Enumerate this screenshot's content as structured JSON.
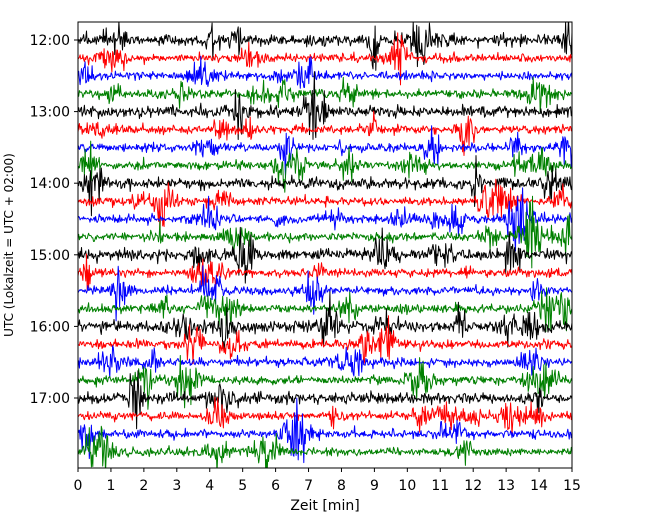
{
  "chart_data": {
    "type": "line",
    "subtype": "helicorder",
    "xlabel": "Zeit  [min]",
    "ylabel": "UTC (Lokalzeit = UTC + 02:00)",
    "xlim": [
      0,
      15
    ],
    "x_ticks": [
      "0",
      "1",
      "2",
      "3",
      "4",
      "5",
      "6",
      "7",
      "8",
      "9",
      "10",
      "11",
      "12",
      "13",
      "14",
      "15"
    ],
    "y_ticks": [
      "12:00",
      "13:00",
      "14:00",
      "15:00",
      "16:00",
      "17:00"
    ],
    "rows_per_hour": 4,
    "row_minutes": 15,
    "first_row_utc": "12:00",
    "last_row_utc": "17:45",
    "trace_colors": [
      "#000000",
      "#ff0000",
      "#0000ff",
      "#008000"
    ],
    "grid": false,
    "legend": "none"
  }
}
